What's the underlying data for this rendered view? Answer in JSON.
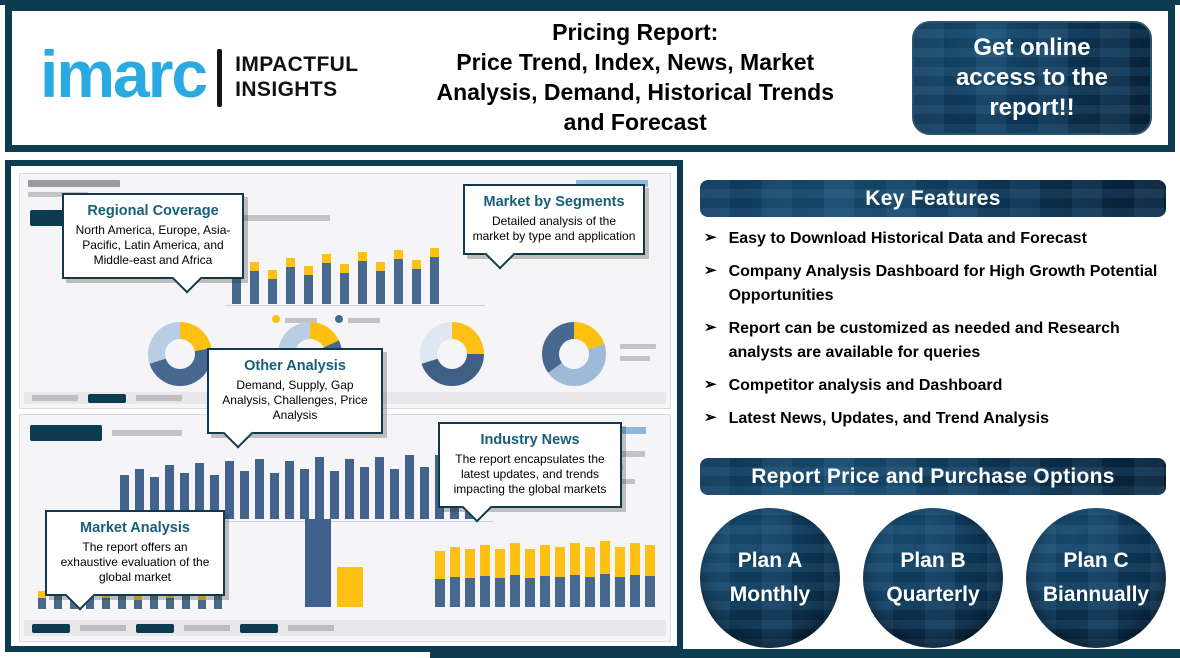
{
  "header": {
    "logo": {
      "brand": "imarc",
      "tagline_line1": "IMPACTFUL",
      "tagline_line2": "INSIGHTS"
    },
    "title_line1": "Pricing Report:",
    "title_rest": "Price Trend, Index, News, Market Analysis, Demand, Historical Trends and Forecast",
    "cta": "Get online access to the report!!"
  },
  "callouts": {
    "regional": {
      "title": "Regional Coverage",
      "body": "North America, Europe, Asia-Pacific, Latin America, and Middle-east and Africa"
    },
    "segments": {
      "title": "Market by Segments",
      "body": "Detailed analysis of the market by type and application"
    },
    "other": {
      "title": "Other Analysis",
      "body": "Demand, Supply, Gap Analysis, Challenges, Price Analysis"
    },
    "news": {
      "title": "Industry News",
      "body": "The report encapsulates the latest updates, and trends impacting the global markets"
    },
    "market": {
      "title": "Market Analysis",
      "body": "The report offers an exhaustive evaluation of the global market"
    }
  },
  "key_features": {
    "title": "Key Features",
    "items": [
      "Easy to Download Historical Data and Forecast",
      "Company Analysis Dashboard for High Growth Potential Opportunities",
      "Report can be customized as needed and Research analysts are available for queries",
      "Competitor analysis and Dashboard",
      "Latest News, Updates, and Trend Analysis"
    ]
  },
  "pricing": {
    "title": "Report Price and Purchase Options",
    "plans": [
      {
        "name": "Plan A",
        "period": "Monthly"
      },
      {
        "name": "Plan B",
        "period": "Quarterly"
      },
      {
        "name": "Plan C",
        "period": "Biannually"
      }
    ]
  },
  "icons": {
    "bullet": "➢"
  },
  "colors": {
    "brand_blue": "#29aae1",
    "dark_navy": "#0d3b50",
    "accent_yellow": "#fdc013",
    "bar_navy": "#47698f",
    "callout_title": "#156078"
  },
  "decor": {
    "top_bars": {
      "heights": [
        36,
        42,
        34,
        46,
        38,
        50,
        40,
        52,
        42,
        54,
        44,
        56
      ],
      "width": 9,
      "gap": 9,
      "color": "#47698f",
      "cap": 9,
      "cap_color": "#fdc013"
    },
    "big_bars": {
      "heights": [
        44,
        50,
        42,
        54,
        46,
        56,
        44,
        58,
        48,
        60,
        46,
        58,
        50,
        62,
        48,
        60,
        52,
        62,
        50,
        64,
        52,
        64,
        54,
        66
      ],
      "width": 9,
      "gap": 6,
      "color": "#42638c"
    },
    "mini_bars": {
      "heights": [
        18,
        24,
        16,
        22,
        18,
        26,
        16,
        24,
        18,
        22,
        16,
        26
      ],
      "width": 8,
      "gap": 8,
      "color": "#47698f",
      "cap": 7,
      "cap_color": "#fdc013"
    },
    "stack_bars": {
      "heights": [
        56,
        60,
        58,
        62,
        58,
        64,
        58,
        62,
        60,
        64,
        60,
        66,
        60,
        64,
        62
      ],
      "width": 10,
      "gap": 5,
      "split": 0.5,
      "top_color": "#fdc013",
      "bottom_color": "#47698f"
    },
    "donut1": {
      "segments": [
        [
          "#fdc013",
          22
        ],
        [
          "#47698f",
          48
        ],
        [
          "#b9cde4",
          30
        ]
      ]
    },
    "donut2": {
      "segments": [
        [
          "#fdc013",
          18
        ],
        [
          "#47698f",
          52
        ],
        [
          "#b9cde4",
          30
        ]
      ]
    },
    "donut3": {
      "segments": [
        [
          "#fdc013",
          25
        ],
        [
          "#3f5f85",
          45
        ],
        [
          "#dfe7f2",
          30
        ]
      ]
    },
    "donut4": {
      "segments": [
        [
          "#fdc013",
          20
        ],
        [
          "#9fb9d8",
          45
        ],
        [
          "#47698f",
          35
        ]
      ]
    }
  }
}
